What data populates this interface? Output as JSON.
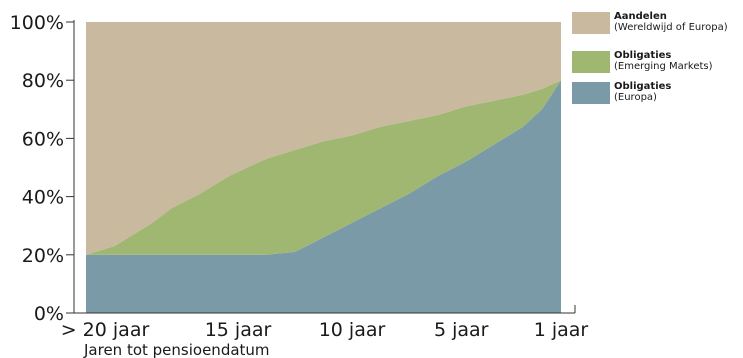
{
  "chart_data": {
    "type": "area",
    "stacked": true,
    "x": [
      100,
      94,
      90,
      86,
      82,
      76,
      70,
      62,
      56,
      50,
      44,
      38,
      32,
      26,
      20,
      14,
      8,
      4,
      0
    ],
    "xticks": [
      {
        "x": 96,
        "label": "> 20 jaar"
      },
      {
        "x": 68,
        "label": "15 jaar"
      },
      {
        "x": 44,
        "label": "10 jaar"
      },
      {
        "x": 21,
        "label": "5 jaar"
      },
      {
        "x": 0,
        "label": "1 jaar"
      }
    ],
    "xlim": [
      100,
      0
    ],
    "ylim": [
      0,
      100
    ],
    "yticks": [
      0,
      20,
      40,
      60,
      80,
      100
    ],
    "ytick_labels": [
      "0%",
      "20%",
      "40%",
      "60%",
      "80%",
      "100%"
    ],
    "xlabel": "Jaren tot pensioendatum",
    "ylabel": "",
    "grid": false,
    "legend_position": "top-right",
    "series": [
      {
        "name": "Obligaties (Europa)",
        "legend_title": "Obligaties",
        "legend_sub": "(Europa)",
        "color": "#7a9aa8",
        "values": [
          20,
          20,
          20,
          20,
          20,
          20,
          20,
          20,
          21,
          26,
          31,
          36,
          41,
          47,
          52,
          58,
          64,
          70,
          80
        ]
      },
      {
        "name": "Obligaties (Emerging Markets)",
        "legend_title": "Obligaties",
        "legend_sub": "(Emerging Markets)",
        "color": "#a0b772",
        "values": [
          0,
          3,
          7,
          11,
          16,
          21,
          27,
          33,
          35,
          33,
          30,
          28,
          25,
          21,
          19,
          15,
          11,
          7,
          0
        ]
      },
      {
        "name": "Aandelen (Wereldwijd of Europa)",
        "legend_title": "Aandelen",
        "legend_sub": "(Wereldwijd of Europa)",
        "color": "#c8b99f",
        "values": [
          80,
          77,
          73,
          69,
          64,
          59,
          53,
          47,
          44,
          41,
          39,
          36,
          34,
          32,
          29,
          27,
          25,
          23,
          20
        ]
      }
    ]
  }
}
